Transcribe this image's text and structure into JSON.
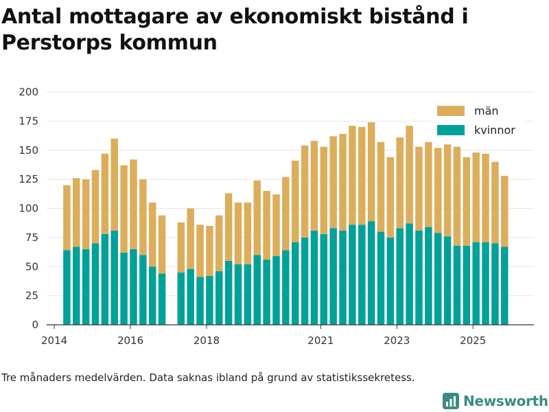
{
  "title": "Antal mottagare av ekonomiskt bistånd i Perstorps kommun",
  "footnote": "Tre månaders medelvärden. Data saknas ibland på grund av statistikssekretess.",
  "brand": {
    "name": "Newsworthy",
    "icon": "bar-chart-logo-icon"
  },
  "colors": {
    "kvinnor": "#00a199",
    "man": "#dcae5c",
    "grid": "#e6e6e6",
    "axis": "#333333",
    "brand": "#3a8d7e"
  },
  "chart_data": {
    "type": "bar",
    "stacked": true,
    "title": "Antal mottagare av ekonomiskt bistånd i Perstorps kommun",
    "xlabel": "",
    "ylabel": "",
    "ylim": [
      0,
      200
    ],
    "yticks": [
      0,
      25,
      50,
      75,
      100,
      125,
      150,
      175,
      200
    ],
    "xlim": [
      2013.8,
      2026.6
    ],
    "xticks": [
      {
        "label": "2014",
        "value": 2014.0
      },
      {
        "label": "2016",
        "value": 2016.0
      },
      {
        "label": "2018",
        "value": 2018.0
      },
      {
        "label": "2021",
        "value": 2021.0
      },
      {
        "label": "2023",
        "value": 2023.0
      },
      {
        "label": "2025",
        "value": 2025.0
      }
    ],
    "legend_position": "top-right",
    "x": [
      2014.33,
      2014.58,
      2014.83,
      2015.08,
      2015.33,
      2015.58,
      2015.83,
      2016.08,
      2016.33,
      2016.58,
      2016.83,
      2017.33,
      2017.58,
      2017.83,
      2018.08,
      2018.33,
      2018.58,
      2018.83,
      2019.08,
      2019.33,
      2019.58,
      2019.83,
      2020.08,
      2020.33,
      2020.58,
      2020.83,
      2021.08,
      2021.33,
      2021.58,
      2021.83,
      2022.08,
      2022.33,
      2022.58,
      2022.83,
      2023.08,
      2023.33,
      2023.58,
      2023.83,
      2024.08,
      2024.33,
      2024.58,
      2024.83,
      2025.08,
      2025.33,
      2025.58,
      2025.83
    ],
    "series": [
      {
        "name": "kvinnor",
        "values": [
          64,
          67,
          65,
          70,
          78,
          81,
          62,
          65,
          60,
          50,
          44,
          45,
          48,
          41,
          42,
          46,
          55,
          52,
          52,
          60,
          56,
          59,
          64,
          71,
          75,
          81,
          78,
          83,
          81,
          86,
          86,
          89,
          80,
          75,
          83,
          87,
          81,
          84,
          79,
          76,
          68,
          68,
          71,
          71,
          70,
          67
        ]
      },
      {
        "name": "män",
        "values": [
          56,
          59,
          60,
          63,
          69,
          79,
          75,
          77,
          65,
          55,
          50,
          43,
          52,
          45,
          43,
          48,
          58,
          53,
          53,
          64,
          59,
          53,
          63,
          70,
          79,
          77,
          75,
          79,
          83,
          85,
          84,
          85,
          77,
          69,
          78,
          84,
          72,
          73,
          73,
          79,
          85,
          76,
          77,
          76,
          70,
          61
        ]
      }
    ],
    "legend": [
      {
        "label": "män",
        "color": "#dcae5c"
      },
      {
        "label": "kvinnor",
        "color": "#00a199"
      }
    ]
  }
}
